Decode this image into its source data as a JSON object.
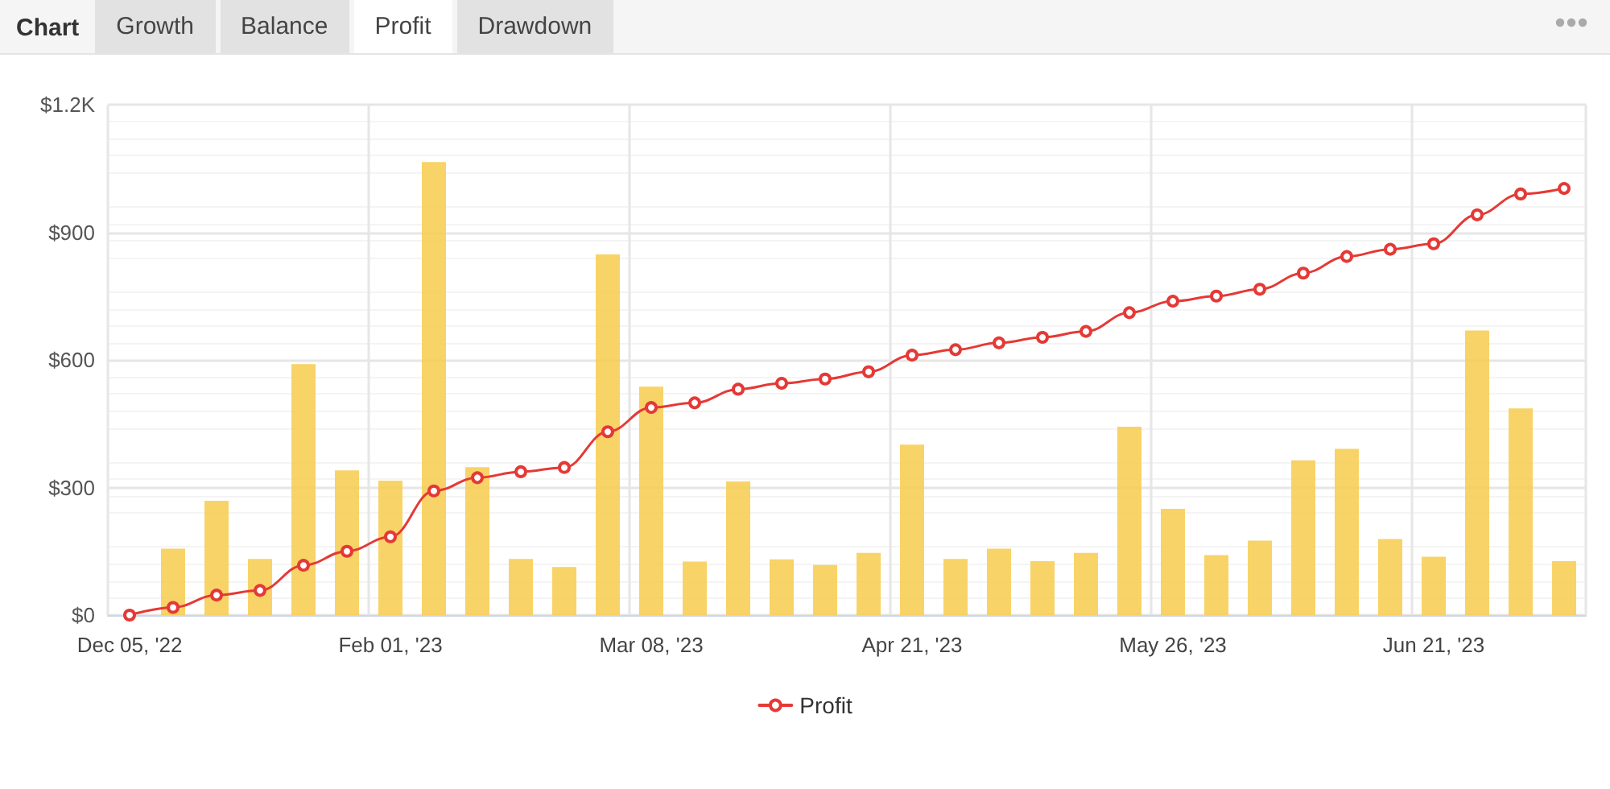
{
  "chart_data": {
    "type": "bar",
    "title": "Chart",
    "annotations": [
      "Growth",
      "Balance",
      "Profit",
      "Drawdown"
    ],
    "categories": [
      "Dec 05, '22",
      null,
      null,
      null,
      null,
      null,
      "Feb 01, '23",
      null,
      null,
      null,
      null,
      null,
      "Mar 08, '23",
      null,
      null,
      null,
      null,
      null,
      "Apr 21, '23",
      null,
      null,
      null,
      null,
      null,
      "May 26, '23",
      null,
      null,
      null,
      null,
      null,
      "Jun 21, '23",
      null,
      null,
      null
    ],
    "series": [
      {
        "color": "#f7cb4d",
        "values": [
          0,
          156,
          269,
          132,
          590,
          340,
          316,
          1065,
          348,
          132,
          113,
          848,
          537,
          126,
          314,
          131,
          118,
          146,
          401,
          132,
          156,
          127,
          146,
          443,
          250,
          141,
          175,
          364,
          391,
          179,
          137,
          669,
          486,
          127
        ]
      },
      {
        "type": "line",
        "name": "Profit",
        "color": "#e53935",
        "values": [
          0,
          18,
          47,
          58,
          117,
          150,
          184,
          292,
          323,
          337,
          347,
          431,
          488,
          499,
          531,
          545,
          555,
          572,
          611,
          624,
          640,
          653,
          667,
          711,
          738,
          750,
          766,
          804,
          843,
          860,
          873,
          941,
          990,
          1003
        ]
      }
    ],
    "ylim": [
      0,
      1200
    ],
    "yticks": [
      {
        "value": 0,
        "label": "$0"
      },
      {
        "value": 300,
        "label": "$300"
      },
      {
        "value": 600,
        "label": "$600"
      },
      {
        "value": 900,
        "label": "$900"
      },
      {
        "value": 1200,
        "label": "$1.2K"
      }
    ],
    "grid": true,
    "legend": "bottom",
    "marker": "circle",
    "line_style": "solid"
  }
}
